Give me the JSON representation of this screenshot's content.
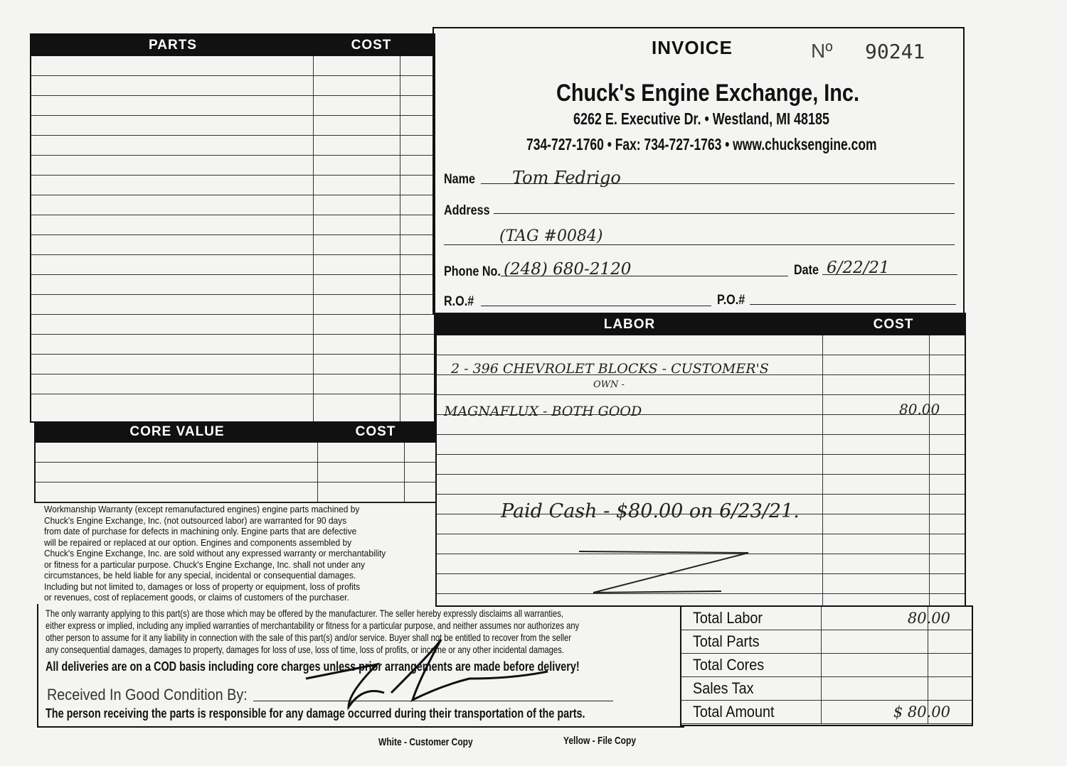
{
  "parts": {
    "header": "PARTS",
    "cost_header": "COST",
    "row_count": 17
  },
  "core": {
    "header": "CORE VALUE",
    "cost_header": "COST",
    "row_count": 3
  },
  "warranty_text": [
    "Workmanship Warranty (except remanufactured engines) engine parts machined by",
    "Chuck's Engine Exchange, Inc. (not outsourced labor) are warranted for 90 days",
    "from date of purchase for defects in machining only. Engine parts that are defective",
    "will be repaired or replaced at our option. Engines and components assembled by",
    "Chuck's Engine Exchange, Inc. are sold without any expressed warranty or merchantability",
    "or fitness for a particular purpose. Chuck's Engine Exchange, Inc. shall not under any",
    "circumstances, be held liable for any special, incidental or consequential damages.",
    "Including but not limited to, damages or loss of property or equipment, loss of profits",
    "or revenues, cost of replacement goods, or claims of customers of the purchaser."
  ],
  "disclaimer": [
    "The only warranty applying to this part(s) are those which may be offered by the manufacturer. The seller hereby expressly disclaims all warranties,",
    "either express or implied, including any implied warranties of merchantability or fitness for a particular purpose, and neither assumes nor authorizes any",
    "other person to assume for it any liability in connection with the sale of this part(s) and/or service. Buyer shall not be entitled to recover from the seller",
    "any consequential damages, damages to property, damages for loss of use, loss of time, loss of profits, or income or any other incidental damages."
  ],
  "cod_notice": "All deliveries are on a COD basis including core charges unless prior arrangements are made before delivery!",
  "received_label": "Received In Good Condition By:",
  "responsibility": "The person receiving the parts is responsible for any damage occurred during their transportation of the parts.",
  "invoice": {
    "title": "INVOICE",
    "no_label": "Nº",
    "number": "90241"
  },
  "company": {
    "name": "Chuck's Engine Exchange, Inc.",
    "address": "6262 E. Executive Dr. • Westland, MI 48185",
    "contact": "734-727-1760 • Fax: 734-727-1763 • www.chucksengine.com"
  },
  "customer": {
    "name_label": "Name",
    "name": "Tom Fedrigo",
    "address_label": "Address",
    "address": "",
    "address2": "(TAG #0084)",
    "phone_label": "Phone No.",
    "phone": "(248) 680-2120",
    "date_label": "Date",
    "date": "6/22/21",
    "ro_label": "R.O.#",
    "po_label": "P.O.#"
  },
  "labor": {
    "header": "LABOR",
    "cost_header": "COST",
    "lines": [
      "2 - 396 CHEVROLET BLOCKS - CUSTOMER'S",
      "OWN -",
      "MAGNAFLUX - BOTH GOOD"
    ],
    "line_cost": "80.00",
    "note": "Paid Cash - $80.00 on 6/23/21."
  },
  "totals": [
    {
      "label": "Total Labor",
      "value": "80.00"
    },
    {
      "label": "Total Parts",
      "value": ""
    },
    {
      "label": "Total Cores",
      "value": ""
    },
    {
      "label": "Sales Tax",
      "value": ""
    },
    {
      "label": "Total Amount",
      "value": "$ 80.00"
    }
  ],
  "copies": {
    "white": "White - Customer Copy",
    "yellow": "Yellow - File Copy"
  }
}
